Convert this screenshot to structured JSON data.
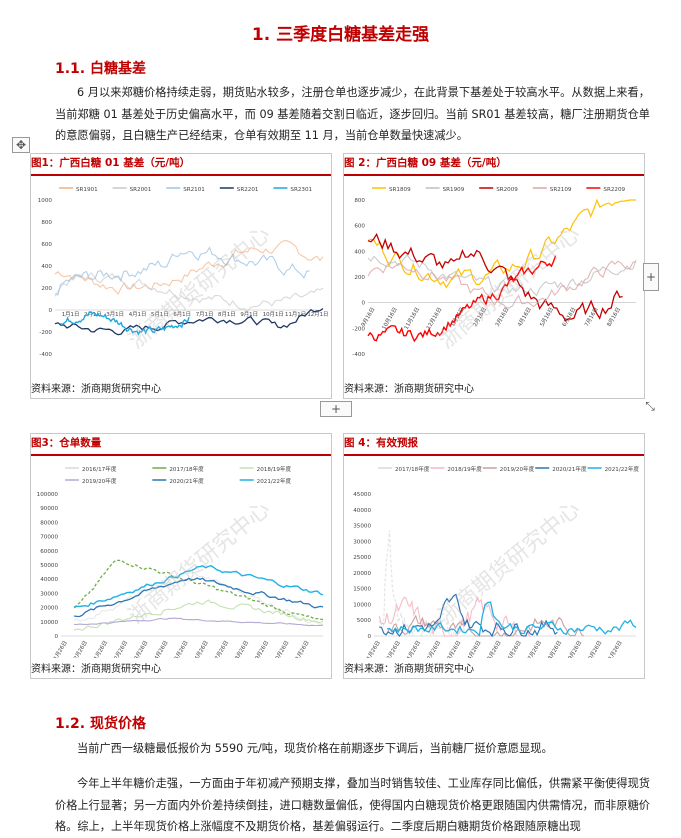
{
  "headings": {
    "h1": "1.  三季度白糖基差走强",
    "h2_1": "1.1.  白糖基差",
    "h2_2": "1.2.  现货价格"
  },
  "paragraphs": {
    "p1": "6 月以来郑糖价格持续走弱，期货贴水较多，注册仓单也逐步减少，在此背景下基差处于较高水平。从数据上来看，当前郑糖 01 基差处于历史偏高水平，而 09 基差随着交割日临近，逐步回归。当前 SR01 基差较高，糖厂注册期货仓单的意愿偏弱，且白糖生产已经结束，仓单有效期至 11 月，当前仓单数量快速减少。",
    "p2": "当前广西一级糖最低报价为 5590 元/吨，现货价格在前期逐步下调后，当前糖厂挺价意愿显现。",
    "p3": "今年上半年糖价走强，一方面由于年初减产预期支撑，叠加当时销售较佳、工业库存同比偏低，供需紧平衡使得现货价格上行显著；另一方面内外价差持续倒挂，进口糖数量偏低，使得国内白糖现货价格更跟随国内供需情况，而非原糖价格。综上，上半年现货价格上涨幅度不及期货价格，基差偏弱运行。二季度后期白糖期货价格跟随原糖出现"
  },
  "source_text": "资料来源：浙商期货研究中心",
  "watermark": "浙商期货研究中心",
  "ui": {
    "move_handle": "✥",
    "plus": "+",
    "resize": "⤡"
  },
  "figures": {
    "fig1": {
      "caption": "图1：广西白糖 01 基差（元/吨）",
      "chart_data": {
        "type": "line",
        "legend_position": "top",
        "series": [
          {
            "name": "SR1901",
            "color": "#f4b183"
          },
          {
            "name": "SR2001",
            "color": "#c9c9c9"
          },
          {
            "name": "SR2101",
            "color": "#9dc3e6"
          },
          {
            "name": "SR2201",
            "color": "#203864"
          },
          {
            "name": "SR2301",
            "color": "#1fa8e0"
          }
        ],
        "y_ticks": [
          "1000",
          "800",
          "600",
          "400",
          "200",
          "0",
          "-200",
          "-400"
        ],
        "ylim": [
          -400,
          1000
        ],
        "x_ticks": [
          "1月1日",
          "2月1日",
          "3月1日",
          "4月1日",
          "5月1日",
          "6月1日",
          "7月1日",
          "8月1日",
          "9月1日",
          "10月1日",
          "11月1日",
          "12月1日"
        ]
      }
    },
    "fig2": {
      "caption": "图 2：广西白糖 09 基差（元/吨）",
      "chart_data": {
        "type": "line",
        "legend_position": "top",
        "series": [
          {
            "name": "SR1809",
            "color": "#ffc000"
          },
          {
            "name": "SR1909",
            "color": "#bfbfbf"
          },
          {
            "name": "SR2009",
            "color": "#c00000"
          },
          {
            "name": "SR2109",
            "color": "#d9a5a5"
          },
          {
            "name": "SR2209",
            "color": "#ff0000"
          }
        ],
        "y_ticks": [
          "800",
          "600",
          "400",
          "200",
          "0",
          "-200",
          "-400"
        ],
        "ylim": [
          -400,
          800
        ],
        "x_ticks": [
          "9月16日",
          "10月16日",
          "11月16日",
          "12月16日",
          "1月16日",
          "2月16日",
          "3月16日",
          "4月16日",
          "5月16日",
          "6月16日",
          "7月16日",
          "8月16日"
        ]
      }
    },
    "fig3": {
      "caption": "图3：仓单数量",
      "chart_data": {
        "type": "line",
        "legend_position": "top",
        "series": [
          {
            "name": "2016/17年度",
            "color": "#d9d9d9"
          },
          {
            "name": "2017/18年度",
            "color": "#70ad47"
          },
          {
            "name": "2018/19年度",
            "color": "#c5e0b4"
          },
          {
            "name": "2019/20年度",
            "color": "#b4a7d6"
          },
          {
            "name": "2020/21年度",
            "color": "#2e75b6"
          },
          {
            "name": "2021/22年度",
            "color": "#1fb2e6"
          }
        ],
        "y_ticks": [
          "100000",
          "90000",
          "80000",
          "70000",
          "60000",
          "50000",
          "40000",
          "30000",
          "20000",
          "10000",
          "0"
        ],
        "ylim": [
          0,
          100000
        ],
        "x_ticks": [
          "11月26日",
          "12月26日",
          "1月26日",
          "2月26日",
          "3月26日",
          "4月26日",
          "5月26日",
          "6月26日",
          "7月26日",
          "8月26日",
          "9月26日",
          "10月26日",
          "11月26日"
        ]
      }
    },
    "fig4": {
      "caption": "图 4：有效预报",
      "chart_data": {
        "type": "line",
        "legend_position": "top",
        "series": [
          {
            "name": "2017/18年度",
            "color": "#d9d9d9"
          },
          {
            "name": "2018/19年度",
            "color": "#f4b6c2"
          },
          {
            "name": "2019/20年度",
            "color": "#c9a0a0"
          },
          {
            "name": "2020/21年度",
            "color": "#2e75b6"
          },
          {
            "name": "2021/22年度",
            "color": "#1fb2e6"
          }
        ],
        "y_ticks": [
          "45000",
          "40000",
          "35000",
          "30000",
          "25000",
          "20000",
          "15000",
          "10000",
          "5000",
          "0"
        ],
        "ylim": [
          0,
          45000
        ],
        "x_ticks": [
          "11月26日",
          "12月26日",
          "1月26日",
          "2月26日",
          "3月26日",
          "4月26日",
          "5月26日",
          "6月26日",
          "7月26日",
          "8月26日",
          "9月26日",
          "10月26日",
          "11月26日"
        ]
      }
    }
  }
}
